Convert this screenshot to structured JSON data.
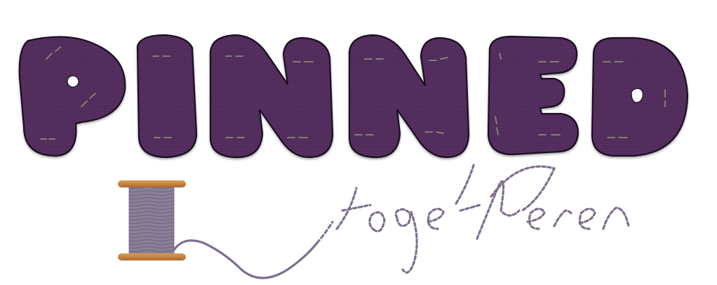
{
  "logo": {
    "main_word": "PINNED",
    "letters": [
      "P",
      "I",
      "N",
      "N",
      "E",
      "D"
    ],
    "tagline": "together"
  },
  "colors": {
    "fabric": "#4f2a5a",
    "fabric_light": "#5b3366",
    "fabric_outline": "#1c0f20",
    "pin_stitch": "#8a8a74",
    "thread": "#7d6f8e",
    "spool_thread": "#8a7f97",
    "spool_wood": "#c88540",
    "spool_wood_dark": "#a8682c",
    "background": "#ffffff"
  },
  "icons": {
    "spool": "thread-spool-icon"
  }
}
